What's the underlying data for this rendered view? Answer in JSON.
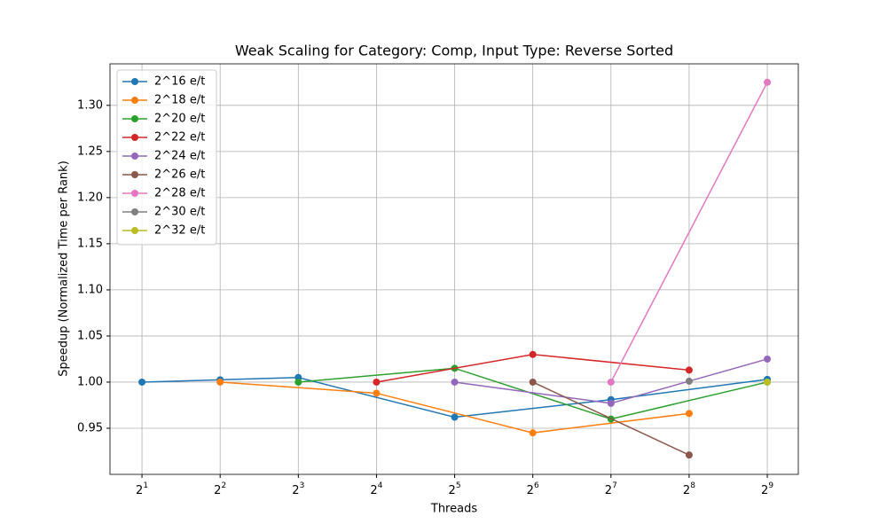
{
  "chart_data": {
    "type": "line",
    "title": "Weak Scaling for Category: Comp, Input Type: Reverse Sorted",
    "x_label": "Threads",
    "y_label": "Speedup (Normalized Time per Rank)",
    "xscale": "log2",
    "grid": true,
    "legend": "upper left",
    "xlim": [
      1.506,
      674
    ],
    "ylim": [
      0.9,
      1.345
    ],
    "xticks": [
      {
        "value": 2,
        "label": "2^1"
      },
      {
        "value": 4,
        "label": "2^2"
      },
      {
        "value": 8,
        "label": "2^3"
      },
      {
        "value": 16,
        "label": "2^4"
      },
      {
        "value": 32,
        "label": "2^5"
      },
      {
        "value": 64,
        "label": "2^6"
      },
      {
        "value": 128,
        "label": "2^7"
      },
      {
        "value": 256,
        "label": "2^8"
      },
      {
        "value": 512,
        "label": "2^9"
      }
    ],
    "yticks": [
      {
        "value": 0.95,
        "label": "0.95"
      },
      {
        "value": 1.0,
        "label": "1.00"
      },
      {
        "value": 1.05,
        "label": "1.05"
      },
      {
        "value": 1.1,
        "label": "1.10"
      },
      {
        "value": 1.15,
        "label": "1.15"
      },
      {
        "value": 1.2,
        "label": "1.20"
      },
      {
        "value": 1.25,
        "label": "1.25"
      },
      {
        "value": 1.3,
        "label": "1.30"
      }
    ],
    "series": [
      {
        "name": "2^16 e/t",
        "color": "#1f77b4",
        "x": [
          2,
          4,
          8,
          32,
          128,
          512
        ],
        "values": [
          1.0,
          1.0025,
          1.005,
          0.962,
          0.981,
          1.003
        ]
      },
      {
        "name": "2^18 e/t",
        "color": "#ff7f0e",
        "x": [
          4,
          16,
          64,
          256
        ],
        "values": [
          1.0,
          0.988,
          0.945,
          0.966
        ]
      },
      {
        "name": "2^20 e/t",
        "color": "#2ca02c",
        "x": [
          8,
          32,
          128,
          512
        ],
        "values": [
          1.0,
          1.015,
          0.96,
          1.0
        ]
      },
      {
        "name": "2^22 e/t",
        "color": "#d62728",
        "x": [
          16,
          64,
          256
        ],
        "values": [
          1.0,
          1.03,
          1.013
        ]
      },
      {
        "name": "2^24 e/t",
        "color": "#9467bd",
        "x": [
          32,
          128,
          512
        ],
        "values": [
          1.0,
          0.977,
          1.025
        ]
      },
      {
        "name": "2^26 e/t",
        "color": "#8c564b",
        "x": [
          64,
          256
        ],
        "values": [
          1.0,
          0.921
        ]
      },
      {
        "name": "2^28 e/t",
        "color": "#e377c2",
        "x": [
          128,
          512
        ],
        "values": [
          1.0,
          1.325
        ]
      },
      {
        "name": "2^30 e/t",
        "color": "#7f7f7f",
        "x": [
          256
        ],
        "values": [
          1.001
        ]
      },
      {
        "name": "2^32 e/t",
        "color": "#bcbd22",
        "x": [
          512
        ],
        "values": [
          1.0
        ]
      }
    ]
  }
}
